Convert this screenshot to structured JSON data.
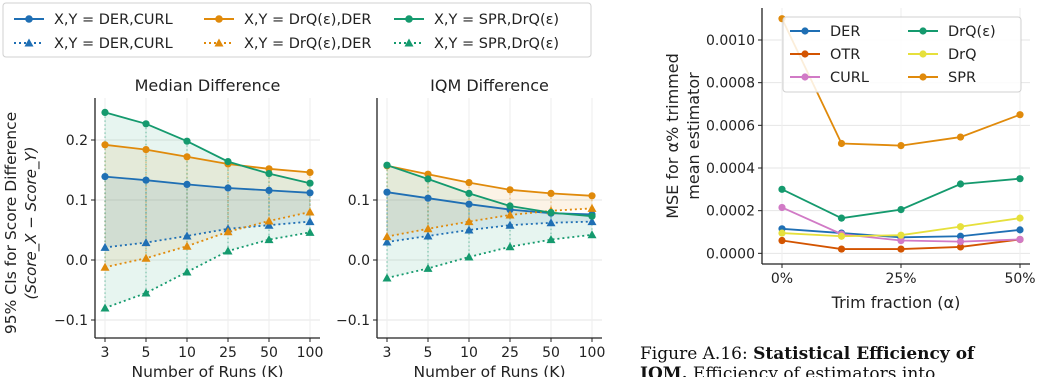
{
  "chart_data": [
    {
      "type": "line",
      "title": "Median Difference",
      "ylabel": "95% CIs for Score Difference",
      "ylabel2": "(Score_X − Score_Y)",
      "xlabel": "Number of Runs (K)",
      "categories": [
        "3",
        "5",
        "10",
        "25",
        "50",
        "100"
      ],
      "ylim": [
        -0.13,
        0.27
      ],
      "yticks": [
        -0.1,
        0.0,
        0.1,
        0.2
      ],
      "yticklabels": [
        "−0.1",
        "0.0",
        "0.1",
        "0.2"
      ],
      "series": [
        {
          "name": "X,Y = DER,CURL",
          "color": "#1f6fb4",
          "upper": [
            0.139,
            0.133,
            0.126,
            0.12,
            0.116,
            0.112
          ],
          "lower": [
            0.021,
            0.029,
            0.04,
            0.052,
            0.058,
            0.064
          ]
        },
        {
          "name": "X,Y = DrQ(ε),DER",
          "color": "#e08a0b",
          "upper": [
            0.192,
            0.184,
            0.172,
            0.16,
            0.152,
            0.146
          ],
          "lower": [
            -0.012,
            0.003,
            0.023,
            0.047,
            0.065,
            0.08
          ]
        },
        {
          "name": "X,Y = SPR,DrQ(ε)",
          "color": "#159a6e",
          "upper": [
            0.246,
            0.227,
            0.198,
            0.164,
            0.144,
            0.128
          ],
          "lower": [
            -0.08,
            -0.055,
            -0.02,
            0.015,
            0.034,
            0.046
          ]
        }
      ]
    },
    {
      "type": "line",
      "title": "IQM Difference",
      "xlabel": "Number of Runs (K)",
      "categories": [
        "3",
        "5",
        "10",
        "25",
        "50",
        "100"
      ],
      "ylim": [
        -0.13,
        0.27
      ],
      "yticks": [
        -0.1,
        0.0,
        0.1
      ],
      "yticklabels": [
        "−0.1",
        "0.0",
        "0.1"
      ],
      "series": [
        {
          "name": "X,Y = DER,CURL",
          "color": "#1f6fb4",
          "upper": [
            0.113,
            0.103,
            0.093,
            0.084,
            0.078,
            0.076
          ],
          "lower": [
            0.03,
            0.04,
            0.05,
            0.058,
            0.062,
            0.064
          ]
        },
        {
          "name": "X,Y = DrQ(ε),DER",
          "color": "#e08a0b",
          "upper": [
            0.157,
            0.143,
            0.129,
            0.117,
            0.111,
            0.107
          ],
          "lower": [
            0.039,
            0.052,
            0.064,
            0.075,
            0.082,
            0.086
          ]
        },
        {
          "name": "X,Y = SPR,DrQ(ε)",
          "color": "#159a6e",
          "upper": [
            0.158,
            0.135,
            0.111,
            0.09,
            0.079,
            0.073
          ],
          "lower": [
            -0.03,
            -0.014,
            0.005,
            0.022,
            0.034,
            0.042
          ]
        }
      ]
    },
    {
      "type": "line",
      "ylabel": "MSE for α% trimmed",
      "ylabel2": "mean estimator",
      "xlabel": "Trim fraction (α)",
      "x": [
        0,
        12.5,
        25,
        37.5,
        50
      ],
      "xticks": [
        0,
        25,
        50
      ],
      "xticklabels": [
        "0%",
        "25%",
        "50%"
      ],
      "ylim": [
        -5e-05,
        0.00115
      ],
      "yticks": [
        0.0,
        0.0002,
        0.0004,
        0.0006,
        0.0008,
        0.001
      ],
      "yticklabels": [
        "0.0000",
        "0.0002",
        "0.0004",
        "0.0006",
        "0.0008",
        "0.0010"
      ],
      "series": [
        {
          "name": "DER",
          "color": "#1f6fb4",
          "values": [
            0.000115,
            9.5e-05,
            7.5e-05,
            8e-05,
            0.00011
          ]
        },
        {
          "name": "OTR",
          "color": "#d35400",
          "values": [
            6e-05,
            2e-05,
            2e-05,
            3e-05,
            6.5e-05
          ]
        },
        {
          "name": "CURL",
          "color": "#d17ac6",
          "values": [
            0.000215,
            9e-05,
            6e-05,
            5.5e-05,
            6.5e-05
          ]
        },
        {
          "name": "DrQ(ε)",
          "color": "#159a6e",
          "values": [
            0.0003,
            0.000165,
            0.000205,
            0.000325,
            0.00035
          ]
        },
        {
          "name": "DrQ",
          "color": "#e6e03c",
          "values": [
            9.5e-05,
            8e-05,
            8.5e-05,
            0.000125,
            0.000165
          ]
        },
        {
          "name": "SPR",
          "color": "#e08a0b",
          "values": [
            0.0011,
            0.000515,
            0.000505,
            0.000545,
            0.00065
          ]
        }
      ]
    }
  ],
  "legend": [
    {
      "label": "X,Y = DER,CURL",
      "color": "#1f6fb4",
      "style": "solid",
      "marker": "circle"
    },
    {
      "label": "X,Y = DrQ(ε),DER",
      "color": "#e08a0b",
      "style": "solid",
      "marker": "circle"
    },
    {
      "label": "X,Y = SPR,DrQ(ε)",
      "color": "#159a6e",
      "style": "solid",
      "marker": "circle"
    },
    {
      "label": "X,Y = DER,CURL",
      "color": "#1f6fb4",
      "style": "dotted",
      "marker": "triangle"
    },
    {
      "label": "X,Y = DrQ(ε),DER",
      "color": "#e08a0b",
      "style": "dotted",
      "marker": "triangle"
    },
    {
      "label": "X,Y = SPR,DrQ(ε)",
      "color": "#159a6e",
      "style": "dotted",
      "marker": "triangle"
    }
  ],
  "caption": {
    "label": "Figure A.16:",
    "bold": "Statistical Efficiency of",
    "line2_bold": "IQM.",
    "line2_rest": "Efficiency of estimators into"
  }
}
